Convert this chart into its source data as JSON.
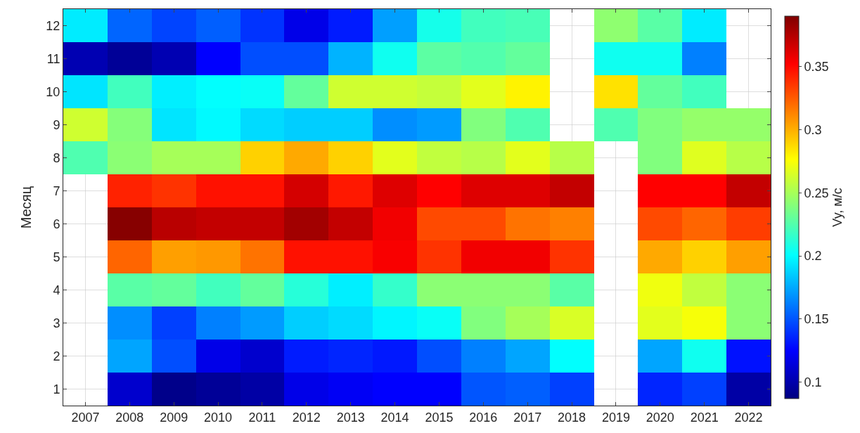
{
  "chart_data": {
    "type": "heatmap",
    "ylabel": "Месяц",
    "clabel": "Vy, м/с",
    "categories": [
      "2007",
      "2008",
      "2009",
      "2010",
      "2011",
      "2012",
      "2013",
      "2014",
      "2015",
      "2016",
      "2017",
      "2018",
      "2019",
      "2020",
      "2021",
      "2022"
    ],
    "y_categories": [
      "12",
      "11",
      "10",
      "9",
      "8",
      "7",
      "6",
      "5",
      "4",
      "3",
      "2",
      "1"
    ],
    "cells": [
      [
        0.195,
        0.155,
        0.145,
        0.153,
        0.14,
        0.118,
        0.133,
        0.172,
        0.207,
        0.22,
        0.222,
        null,
        0.243,
        0.227,
        0.195,
        null
      ],
      [
        0.102,
        0.094,
        0.102,
        0.125,
        0.148,
        0.148,
        0.178,
        0.205,
        0.228,
        0.225,
        0.23,
        null,
        0.205,
        0.205,
        0.163,
        null
      ],
      [
        0.193,
        0.22,
        0.196,
        0.201,
        0.203,
        0.23,
        0.262,
        0.262,
        0.259,
        0.268,
        0.28,
        null,
        0.285,
        0.23,
        0.22,
        null
      ],
      [
        0.262,
        0.24,
        0.193,
        0.199,
        0.19,
        0.186,
        0.186,
        0.167,
        0.171,
        0.239,
        0.224,
        null,
        0.224,
        0.239,
        0.245,
        0.245
      ],
      [
        0.224,
        0.242,
        0.25,
        0.25,
        0.29,
        0.302,
        0.29,
        0.268,
        0.258,
        0.255,
        0.268,
        0.255,
        null,
        0.239,
        0.267,
        0.255
      ],
      [
        null,
        0.342,
        0.337,
        0.347,
        0.347,
        0.365,
        0.345,
        0.362,
        0.352,
        0.362,
        0.362,
        0.37,
        null,
        0.352,
        0.352,
        0.37
      ],
      [
        null,
        0.388,
        0.373,
        0.37,
        0.37,
        0.38,
        0.37,
        0.356,
        0.33,
        0.33,
        0.318,
        0.314,
        null,
        0.33,
        0.322,
        0.334
      ],
      [
        null,
        0.322,
        0.305,
        0.307,
        0.318,
        0.347,
        0.347,
        0.354,
        0.337,
        0.356,
        0.356,
        0.337,
        null,
        0.302,
        0.29,
        0.305
      ],
      [
        null,
        0.227,
        0.23,
        0.22,
        0.23,
        0.212,
        0.196,
        0.216,
        0.242,
        0.242,
        0.242,
        0.227,
        null,
        0.272,
        0.258,
        0.242
      ],
      [
        null,
        0.167,
        0.144,
        0.163,
        0.171,
        0.186,
        0.19,
        0.198,
        0.203,
        0.239,
        0.25,
        0.265,
        null,
        0.268,
        0.274,
        0.242
      ],
      [
        null,
        0.174,
        0.148,
        0.118,
        0.11,
        0.133,
        0.136,
        0.132,
        0.148,
        0.163,
        0.174,
        0.201,
        null,
        0.174,
        0.205,
        0.13
      ],
      [
        null,
        0.11,
        0.09,
        0.094,
        0.098,
        0.118,
        0.122,
        0.125,
        0.125,
        0.15,
        0.153,
        0.144,
        null,
        0.136,
        0.144,
        0.098
      ]
    ],
    "clim": [
      0.087,
      0.39
    ],
    "cticks": [
      0.1,
      0.15,
      0.2,
      0.25,
      0.3,
      0.35
    ],
    "grid": true
  }
}
